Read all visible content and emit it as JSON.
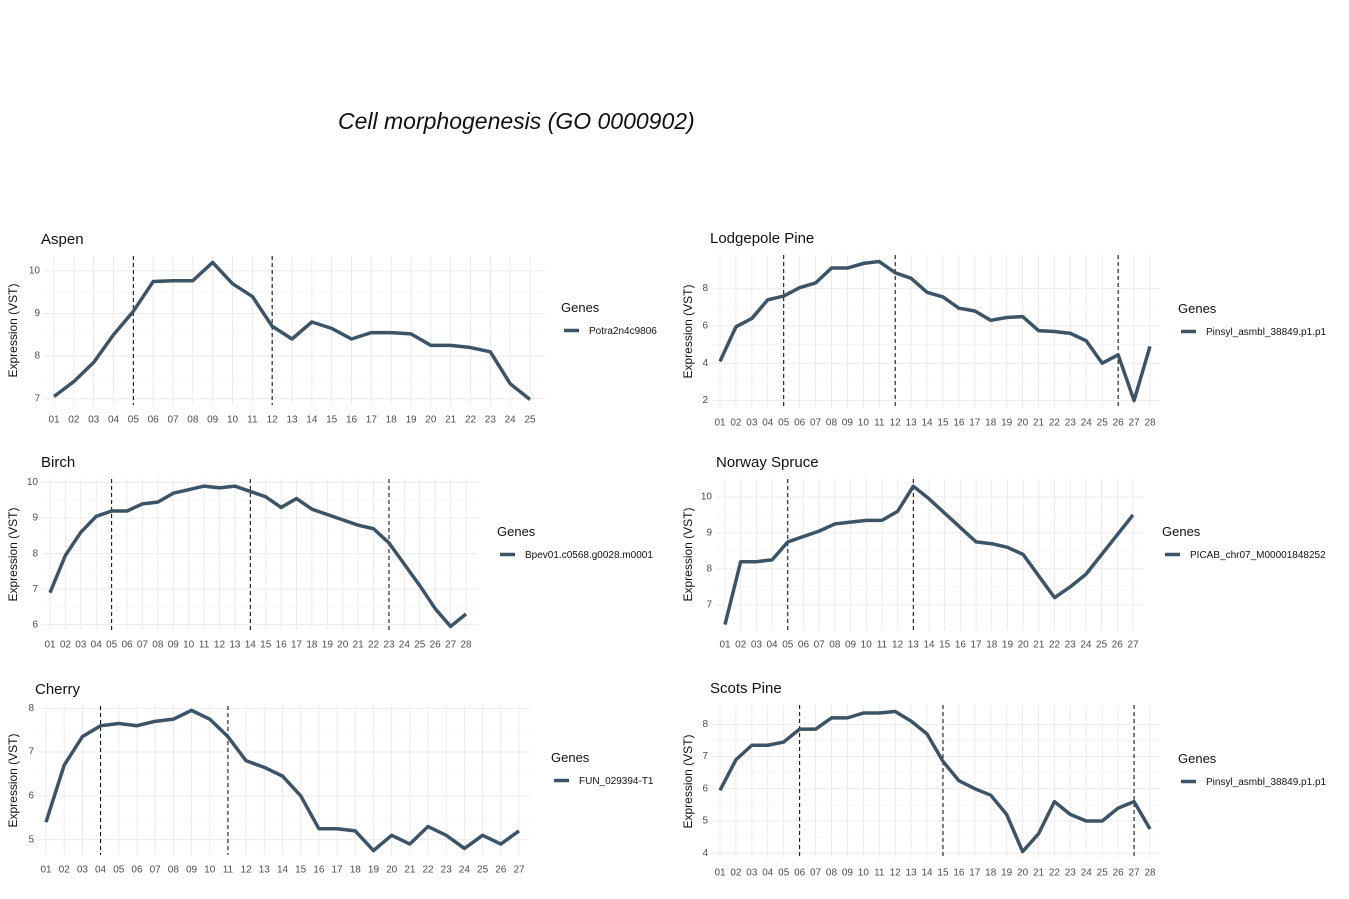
{
  "title": "Cell morphogenesis (GO 0000902)",
  "chart_data": [
    {
      "type": "line",
      "title": "Aspen",
      "ylabel": "Expression (VST)",
      "legend_title": "Genes",
      "categories": [
        "01",
        "02",
        "03",
        "04",
        "05",
        "06",
        "07",
        "08",
        "09",
        "10",
        "11",
        "12",
        "13",
        "14",
        "15",
        "16",
        "17",
        "18",
        "19",
        "20",
        "21",
        "22",
        "23",
        "24",
        "25"
      ],
      "series": [
        {
          "name": "Potra2n4c9806",
          "color": "#3d5366",
          "values": [
            7.05,
            7.4,
            7.85,
            8.5,
            9.05,
            9.75,
            9.77,
            9.77,
            10.2,
            9.7,
            9.4,
            8.7,
            8.4,
            8.8,
            8.65,
            8.4,
            8.55,
            8.55,
            8.52,
            8.25,
            8.25,
            8.2,
            8.1,
            7.35,
            6.98
          ]
        }
      ],
      "vlines": [
        "05",
        "12"
      ],
      "ylim": [
        6.85,
        10.35
      ],
      "yticks": [
        7,
        8,
        9,
        10
      ],
      "grid": true
    },
    {
      "type": "line",
      "title": "Lodgepole Pine",
      "ylabel": "Expression (VST)",
      "legend_title": "Genes",
      "categories": [
        "01",
        "02",
        "03",
        "04",
        "05",
        "06",
        "07",
        "08",
        "09",
        "10",
        "11",
        "12",
        "13",
        "14",
        "15",
        "16",
        "17",
        "18",
        "19",
        "20",
        "21",
        "22",
        "23",
        "24",
        "25",
        "26",
        "27",
        "28"
      ],
      "series": [
        {
          "name": "Pinsyl_asmbl_38849.p1.p1",
          "color": "#3d5366",
          "values": [
            4.1,
            5.95,
            6.4,
            7.4,
            7.6,
            8.05,
            8.3,
            9.1,
            9.1,
            9.35,
            9.45,
            8.85,
            8.55,
            7.8,
            7.55,
            6.95,
            6.8,
            6.3,
            6.45,
            6.5,
            5.75,
            5.7,
            5.6,
            5.2,
            4.0,
            4.45,
            2.0,
            4.9
          ]
        }
      ],
      "vlines": [
        "05",
        "12",
        "26"
      ],
      "ylim": [
        1.6,
        9.8
      ],
      "yticks": [
        2,
        4,
        6,
        8
      ],
      "grid": true
    },
    {
      "type": "line",
      "title": "Birch",
      "ylabel": "Expression (VST)",
      "legend_title": "Genes",
      "categories": [
        "01",
        "02",
        "03",
        "04",
        "05",
        "06",
        "07",
        "08",
        "09",
        "10",
        "11",
        "12",
        "13",
        "14",
        "15",
        "16",
        "17",
        "18",
        "19",
        "20",
        "21",
        "22",
        "23",
        "24",
        "25",
        "26",
        "27",
        "28"
      ],
      "series": [
        {
          "name": "Bpev01.c0568.g0028.m0001",
          "color": "#3d5366",
          "values": [
            6.9,
            7.95,
            8.6,
            9.05,
            9.2,
            9.2,
            9.4,
            9.45,
            9.7,
            9.8,
            9.9,
            9.85,
            9.9,
            9.75,
            9.6,
            9.3,
            9.55,
            9.25,
            9.1,
            8.95,
            8.8,
            8.7,
            8.3,
            7.7,
            7.1,
            6.45,
            5.95,
            6.3
          ]
        }
      ],
      "vlines": [
        "05",
        "14",
        "23"
      ],
      "ylim": [
        5.85,
        10.1
      ],
      "yticks": [
        6,
        7,
        8,
        9,
        10
      ],
      "grid": true
    },
    {
      "type": "line",
      "title": "Norway Spruce",
      "ylabel": "Expression (VST)",
      "legend_title": "Genes",
      "categories": [
        "01",
        "02",
        "03",
        "04",
        "05",
        "06",
        "07",
        "08",
        "09",
        "10",
        "11",
        "12",
        "13",
        "14",
        "15",
        "16",
        "17",
        "18",
        "19",
        "20",
        "21",
        "22",
        "23",
        "24",
        "25",
        "26",
        "27"
      ],
      "series": [
        {
          "name": "PICAB_chr07_M00001848252",
          "color": "#3d5366",
          "values": [
            6.45,
            8.2,
            8.2,
            8.25,
            8.75,
            8.9,
            9.05,
            9.25,
            9.3,
            9.35,
            9.35,
            9.6,
            10.3,
            9.95,
            9.55,
            9.15,
            8.75,
            8.7,
            8.6,
            8.4,
            7.8,
            7.2,
            7.5,
            7.85,
            8.4,
            8.95,
            9.5
          ]
        }
      ],
      "vlines": [
        "05",
        "13"
      ],
      "ylim": [
        6.3,
        10.5
      ],
      "yticks": [
        7,
        8,
        9,
        10
      ],
      "grid": true
    },
    {
      "type": "line",
      "title": "Cherry",
      "ylabel": "Expression (VST)",
      "legend_title": "Genes",
      "categories": [
        "01",
        "02",
        "03",
        "04",
        "05",
        "06",
        "07",
        "08",
        "09",
        "10",
        "11",
        "12",
        "13",
        "14",
        "15",
        "16",
        "17",
        "18",
        "19",
        "20",
        "21",
        "22",
        "23",
        "24",
        "25",
        "26",
        "27"
      ],
      "series": [
        {
          "name": "FUN_029394-T1",
          "color": "#3d5366",
          "values": [
            5.4,
            6.7,
            7.35,
            7.6,
            7.65,
            7.6,
            7.7,
            7.75,
            7.95,
            7.75,
            7.35,
            6.8,
            6.65,
            6.45,
            6.0,
            5.25,
            5.25,
            5.2,
            4.75,
            5.1,
            4.9,
            5.3,
            5.1,
            4.8,
            5.1,
            4.9,
            5.2
          ]
        }
      ],
      "vlines": [
        "04",
        "11"
      ],
      "ylim": [
        4.65,
        8.05
      ],
      "yticks": [
        5,
        6,
        7,
        8
      ],
      "grid": true
    },
    {
      "type": "line",
      "title": "Scots Pine",
      "ylabel": "Expression (VST)",
      "legend_title": "Genes",
      "categories": [
        "01",
        "02",
        "03",
        "04",
        "05",
        "06",
        "07",
        "08",
        "09",
        "10",
        "11",
        "12",
        "13",
        "14",
        "15",
        "16",
        "17",
        "18",
        "19",
        "20",
        "21",
        "22",
        "23",
        "24",
        "25",
        "26",
        "27",
        "28"
      ],
      "series": [
        {
          "name": "Pinsyl_asmbl_38849.p1.p1",
          "color": "#3d5366",
          "values": [
            5.95,
            6.9,
            7.35,
            7.35,
            7.45,
            7.85,
            7.85,
            8.2,
            8.2,
            8.35,
            8.35,
            8.4,
            8.1,
            7.7,
            6.85,
            6.25,
            6.0,
            5.8,
            5.2,
            4.05,
            4.6,
            5.6,
            5.2,
            5.0,
            5.0,
            5.4,
            5.6,
            4.75
          ]
        }
      ],
      "vlines": [
        "06",
        "15",
        "27"
      ],
      "ylim": [
        3.85,
        8.6
      ],
      "yticks": [
        4,
        5,
        6,
        7,
        8
      ],
      "grid": true
    }
  ]
}
